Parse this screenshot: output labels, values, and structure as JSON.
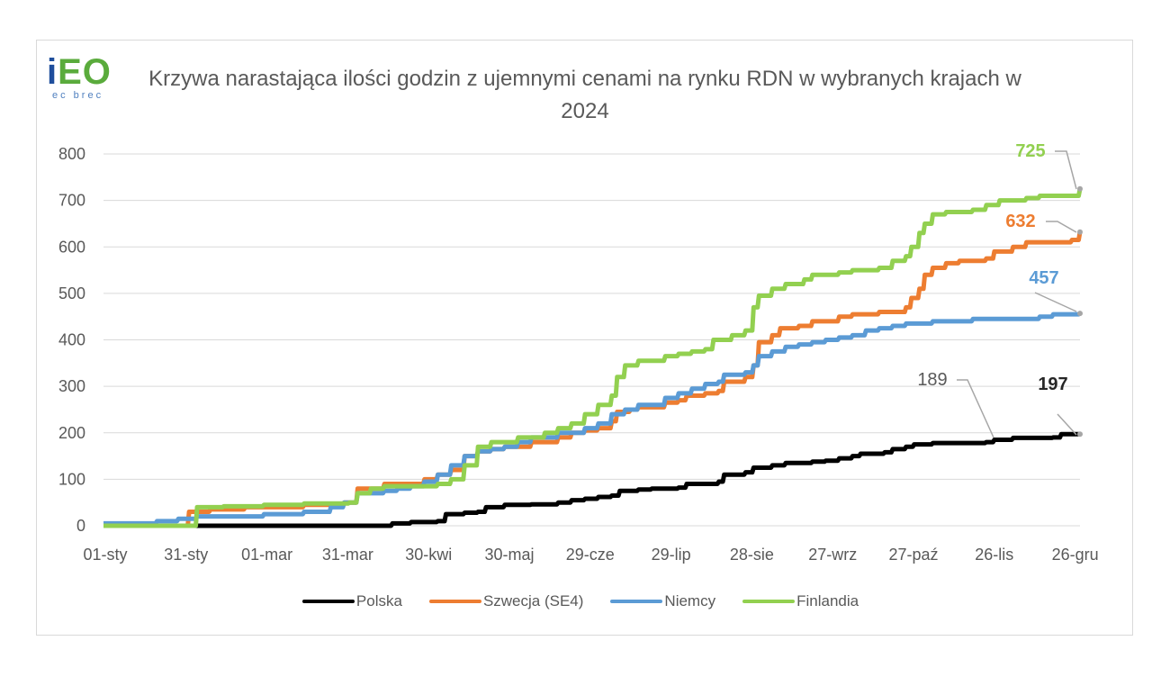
{
  "logo": {
    "text": "iEO",
    "subtext": "ec brec"
  },
  "chart_data": {
    "type": "line",
    "title": "Krzywa narastająca ilości godzin z ujemnymi cenami na rynku RDN w wybranych krajach w 2024",
    "xlabel": "",
    "ylabel": "",
    "x_ticks": [
      "01-sty",
      "31-sty",
      "01-mar",
      "31-mar",
      "30-kwi",
      "30-maj",
      "29-cze",
      "29-lip",
      "28-sie",
      "27-wrz",
      "27-paź",
      "26-lis",
      "26-gru"
    ],
    "ylim": [
      0,
      800
    ],
    "y_ticks": [
      0,
      100,
      200,
      300,
      400,
      500,
      600,
      700,
      800
    ],
    "grid": true,
    "legend_position": "bottom",
    "series": [
      {
        "name": "Polska",
        "color": "#000000",
        "points": [
          [
            0,
            0
          ],
          [
            105,
            0
          ],
          [
            108,
            5
          ],
          [
            115,
            8
          ],
          [
            125,
            10
          ],
          [
            128,
            25
          ],
          [
            135,
            28
          ],
          [
            140,
            30
          ],
          [
            143,
            40
          ],
          [
            150,
            45
          ],
          [
            160,
            46
          ],
          [
            170,
            50
          ],
          [
            175,
            55
          ],
          [
            180,
            58
          ],
          [
            185,
            62
          ],
          [
            190,
            65
          ],
          [
            193,
            75
          ],
          [
            200,
            78
          ],
          [
            205,
            80
          ],
          [
            215,
            82
          ],
          [
            218,
            90
          ],
          [
            230,
            95
          ],
          [
            232,
            110
          ],
          [
            240,
            115
          ],
          [
            243,
            125
          ],
          [
            250,
            130
          ],
          [
            255,
            135
          ],
          [
            265,
            138
          ],
          [
            270,
            140
          ],
          [
            275,
            145
          ],
          [
            280,
            150
          ],
          [
            283,
            155
          ],
          [
            292,
            158
          ],
          [
            295,
            165
          ],
          [
            300,
            170
          ],
          [
            303,
            175
          ],
          [
            310,
            178
          ],
          [
            330,
            180
          ],
          [
            333,
            185
          ],
          [
            340,
            189
          ],
          [
            355,
            190
          ],
          [
            358,
            197
          ],
          [
            365,
            197
          ]
        ],
        "labels": [
          {
            "text": "189"
          },
          {
            "text": "197"
          }
        ]
      },
      {
        "name": "Szwecja (SE4)",
        "color": "#ed7d31",
        "points": [
          [
            0,
            0
          ],
          [
            27,
            0
          ],
          [
            32,
            30
          ],
          [
            40,
            35
          ],
          [
            53,
            40
          ],
          [
            75,
            45
          ],
          [
            90,
            50
          ],
          [
            95,
            80
          ],
          [
            105,
            90
          ],
          [
            120,
            100
          ],
          [
            125,
            110
          ],
          [
            130,
            120
          ],
          [
            135,
            150
          ],
          [
            140,
            160
          ],
          [
            145,
            165
          ],
          [
            150,
            170
          ],
          [
            160,
            180
          ],
          [
            170,
            190
          ],
          [
            175,
            200
          ],
          [
            180,
            205
          ],
          [
            185,
            210
          ],
          [
            190,
            225
          ],
          [
            192,
            245
          ],
          [
            197,
            250
          ],
          [
            200,
            255
          ],
          [
            210,
            265
          ],
          [
            215,
            270
          ],
          [
            218,
            280
          ],
          [
            225,
            285
          ],
          [
            230,
            290
          ],
          [
            232,
            310
          ],
          [
            240,
            320
          ],
          [
            243,
            345
          ],
          [
            245,
            395
          ],
          [
            250,
            410
          ],
          [
            253,
            425
          ],
          [
            260,
            430
          ],
          [
            265,
            440
          ],
          [
            275,
            450
          ],
          [
            280,
            455
          ],
          [
            290,
            460
          ],
          [
            300,
            470
          ],
          [
            302,
            490
          ],
          [
            305,
            510
          ],
          [
            307,
            540
          ],
          [
            310,
            555
          ],
          [
            315,
            565
          ],
          [
            320,
            570
          ],
          [
            330,
            575
          ],
          [
            333,
            590
          ],
          [
            340,
            600
          ],
          [
            345,
            610
          ],
          [
            362,
            615
          ],
          [
            365,
            632
          ]
        ],
        "labels": [
          {
            "text": "632"
          }
        ]
      },
      {
        "name": "Niemcy",
        "color": "#5b9bd5",
        "points": [
          [
            0,
            5
          ],
          [
            20,
            10
          ],
          [
            28,
            15
          ],
          [
            35,
            20
          ],
          [
            60,
            25
          ],
          [
            75,
            30
          ],
          [
            85,
            40
          ],
          [
            90,
            50
          ],
          [
            95,
            70
          ],
          [
            105,
            75
          ],
          [
            110,
            80
          ],
          [
            115,
            85
          ],
          [
            120,
            95
          ],
          [
            125,
            110
          ],
          [
            130,
            130
          ],
          [
            135,
            150
          ],
          [
            140,
            160
          ],
          [
            145,
            165
          ],
          [
            150,
            170
          ],
          [
            155,
            180
          ],
          [
            160,
            190
          ],
          [
            170,
            200
          ],
          [
            180,
            210
          ],
          [
            185,
            220
          ],
          [
            190,
            240
          ],
          [
            195,
            250
          ],
          [
            200,
            260
          ],
          [
            210,
            275
          ],
          [
            215,
            285
          ],
          [
            220,
            295
          ],
          [
            225,
            305
          ],
          [
            230,
            310
          ],
          [
            232,
            325
          ],
          [
            240,
            330
          ],
          [
            243,
            345
          ],
          [
            245,
            365
          ],
          [
            250,
            375
          ],
          [
            255,
            385
          ],
          [
            260,
            390
          ],
          [
            265,
            395
          ],
          [
            270,
            400
          ],
          [
            275,
            405
          ],
          [
            280,
            410
          ],
          [
            285,
            420
          ],
          [
            290,
            425
          ],
          [
            295,
            430
          ],
          [
            300,
            435
          ],
          [
            310,
            440
          ],
          [
            325,
            445
          ],
          [
            350,
            450
          ],
          [
            355,
            455
          ],
          [
            365,
            457
          ]
        ],
        "labels": [
          {
            "text": "457"
          }
        ]
      },
      {
        "name": "Finlandia",
        "color": "#92d050",
        "points": [
          [
            0,
            0
          ],
          [
            30,
            0
          ],
          [
            35,
            40
          ],
          [
            45,
            42
          ],
          [
            60,
            45
          ],
          [
            75,
            48
          ],
          [
            92,
            50
          ],
          [
            95,
            70
          ],
          [
            100,
            80
          ],
          [
            105,
            85
          ],
          [
            125,
            90
          ],
          [
            130,
            100
          ],
          [
            135,
            130
          ],
          [
            140,
            170
          ],
          [
            145,
            180
          ],
          [
            155,
            190
          ],
          [
            165,
            200
          ],
          [
            170,
            210
          ],
          [
            175,
            220
          ],
          [
            180,
            240
          ],
          [
            185,
            260
          ],
          [
            190,
            280
          ],
          [
            192,
            320
          ],
          [
            195,
            345
          ],
          [
            200,
            355
          ],
          [
            210,
            365
          ],
          [
            215,
            370
          ],
          [
            220,
            375
          ],
          [
            225,
            380
          ],
          [
            228,
            400
          ],
          [
            235,
            410
          ],
          [
            240,
            420
          ],
          [
            243,
            470
          ],
          [
            245,
            495
          ],
          [
            250,
            510
          ],
          [
            255,
            520
          ],
          [
            262,
            530
          ],
          [
            265,
            540
          ],
          [
            275,
            545
          ],
          [
            280,
            550
          ],
          [
            290,
            555
          ],
          [
            295,
            570
          ],
          [
            300,
            580
          ],
          [
            302,
            600
          ],
          [
            305,
            630
          ],
          [
            307,
            650
          ],
          [
            310,
            670
          ],
          [
            315,
            675
          ],
          [
            325,
            680
          ],
          [
            330,
            690
          ],
          [
            335,
            700
          ],
          [
            345,
            705
          ],
          [
            350,
            710
          ],
          [
            365,
            725
          ]
        ],
        "labels": [
          {
            "text": "725"
          }
        ]
      }
    ]
  }
}
